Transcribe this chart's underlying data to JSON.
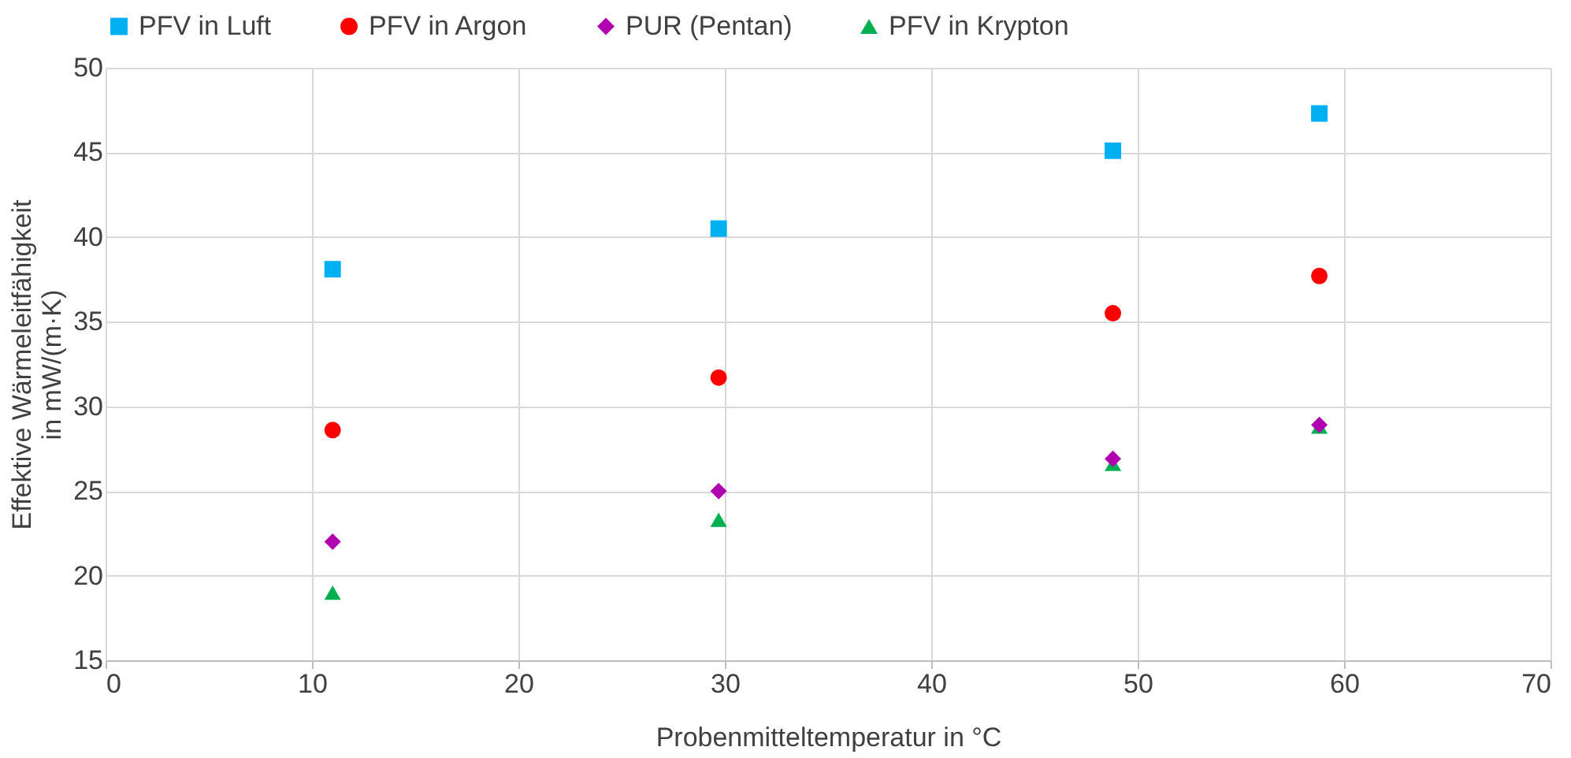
{
  "chart_data": {
    "type": "scatter",
    "xlabel": "Probenmitteltemperatur  in °C",
    "ylabel": "Effektive Wärmeleitfähigkeit\nin mW/(m·K)",
    "x": [
      11.0,
      29.7,
      48.8,
      58.8
    ],
    "series": [
      {
        "name": "PFV in Luft",
        "color": "#00b0f0",
        "marker": "square",
        "values": [
          38.1,
          40.5,
          45.1,
          47.3
        ]
      },
      {
        "name": "PFV in Argon",
        "color": "#ff0000",
        "marker": "circle",
        "values": [
          28.6,
          31.7,
          35.5,
          37.7
        ]
      },
      {
        "name": "PUR (Pentan)",
        "color": "#b000b0",
        "marker": "diamond",
        "values": [
          22.0,
          25.0,
          26.9,
          28.9
        ]
      },
      {
        "name": "PFV in Krypton",
        "color": "#00b050",
        "marker": "triangle",
        "values": [
          19.0,
          23.3,
          26.6,
          28.8
        ]
      }
    ],
    "xlim": [
      0,
      70
    ],
    "xticks": [
      0,
      10,
      20,
      30,
      40,
      50,
      60,
      70
    ],
    "ylim": [
      15,
      50
    ],
    "yticks": [
      15,
      20,
      25,
      30,
      35,
      40,
      45,
      50
    ],
    "grid": true,
    "legend": "top"
  }
}
